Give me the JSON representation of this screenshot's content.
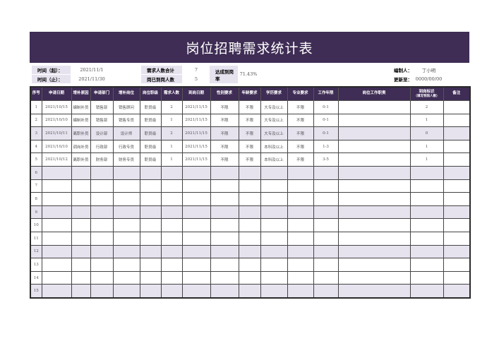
{
  "title": "岗位招聘需求统计表",
  "info": {
    "start_label": "时间（起）：",
    "start": "2021/11/1",
    "end_label": "时间（止）：",
    "end": "2021/11/30",
    "demand_label": "需求人数合计",
    "demand": "7",
    "arrived_label": "岗已到岗人数",
    "arrived": "5",
    "rate_label": "达成到岗率",
    "rate": "71.43%",
    "editor_label": "编制人：",
    "editor": "丁小明",
    "update_label": "更新至：",
    "update": "0000/00/00"
  },
  "headers": [
    "序号",
    "申请日期",
    "增补原因",
    "申请部门",
    "增补岗位",
    "岗位职级",
    "需求人数",
    "到岗日期",
    "性别要求",
    "年龄要求",
    "学历要求",
    "专业要求",
    "工作年限",
    "岗位工作职责",
    "到岗标识",
    "备注"
  ],
  "header_sub": "（填写到岗人数）",
  "rows": [
    [
      "1",
      "2021/10/15",
      "编制补员",
      "销售部",
      "销售顾问",
      "职员级",
      "2",
      "2021/11/15",
      "不限",
      "不限",
      "大专及以上",
      "不限",
      "0-1",
      "",
      "2",
      ""
    ],
    [
      "2",
      "2021/10/10",
      "编制补员",
      "销售部",
      "销售专员",
      "职员级",
      "1",
      "2021/11/15",
      "不限",
      "不限",
      "大专及以上",
      "不限",
      "0-1",
      "",
      "1",
      ""
    ],
    [
      "3",
      "2021/10/11",
      "离职补员",
      "设计部",
      "设计师",
      "职员级",
      "2",
      "2021/11/15",
      "不限",
      "不限",
      "大专及以上",
      "不限",
      "0-1",
      "",
      "0",
      ""
    ],
    [
      "4",
      "2021/10/10",
      "调岗补员",
      "行政部",
      "行政专员",
      "职员级",
      "1",
      "2021/11/15",
      "不限",
      "不限",
      "本科及以上",
      "不限",
      "1-3",
      "",
      "1",
      ""
    ],
    [
      "5",
      "2021/10/12",
      "离职补员",
      "财务部",
      "财务专员",
      "职员级",
      "1",
      "2021/11/15",
      "不限",
      "不限",
      "本科及以上",
      "不限",
      "3-5",
      "",
      "1",
      ""
    ],
    [
      "6"
    ],
    [
      "7"
    ],
    [
      "8"
    ],
    [
      "9"
    ],
    [
      "10"
    ],
    [
      "11"
    ],
    [
      "12"
    ],
    [
      "13"
    ],
    [
      "14"
    ],
    [
      "15"
    ]
  ],
  "colors": {
    "header": "#3f2d55",
    "shade": "#e6e2ee"
  }
}
